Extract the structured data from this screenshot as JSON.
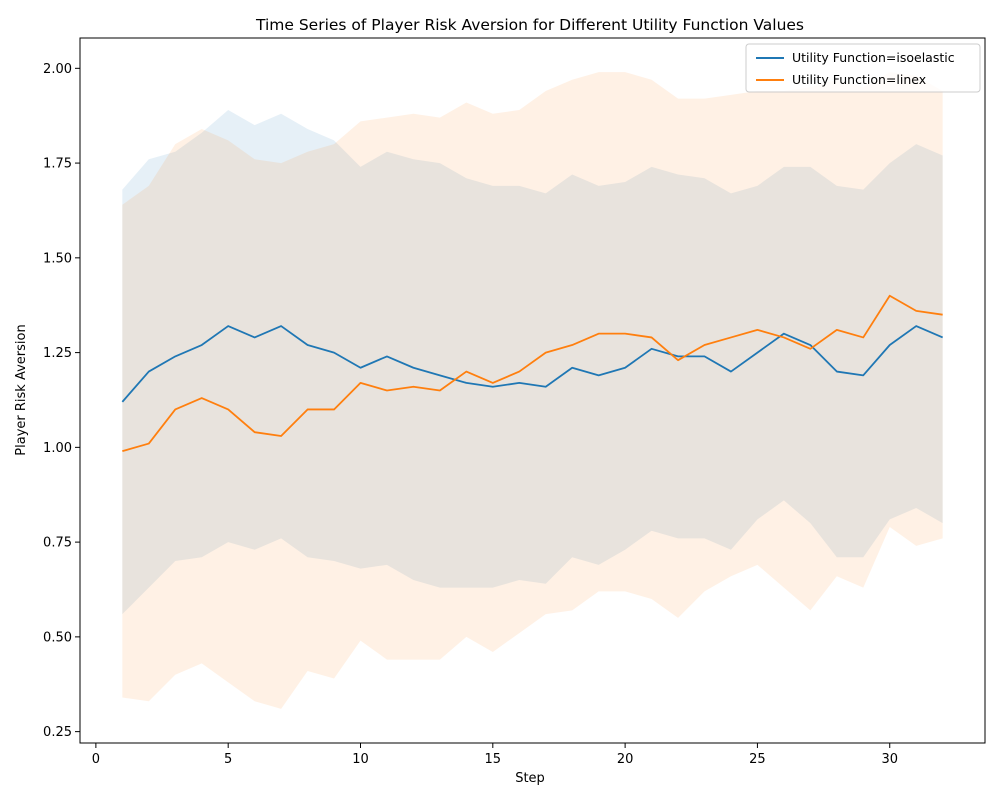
{
  "chart_data": {
    "type": "line",
    "title": "Time Series of Player Risk Aversion for Different Utility Function Values",
    "xlabel": "Step",
    "ylabel": "Player Risk Aversion",
    "xlim": [
      -0.6,
      33.6
    ],
    "ylim": [
      0.22,
      2.08
    ],
    "x_ticks": [
      0,
      5,
      10,
      15,
      20,
      25,
      30
    ],
    "y_ticks": [
      0.25,
      0.5,
      0.75,
      1.0,
      1.25,
      1.5,
      1.75,
      2.0
    ],
    "y_tick_labels": [
      "0.25",
      "0.50",
      "0.75",
      "1.00",
      "1.25",
      "1.50",
      "1.75",
      "2.00"
    ],
    "grid": false,
    "legend_position": "top-right",
    "x": [
      1,
      2,
      3,
      4,
      5,
      6,
      7,
      8,
      9,
      10,
      11,
      12,
      13,
      14,
      15,
      16,
      17,
      18,
      19,
      20,
      21,
      22,
      23,
      24,
      25,
      26,
      27,
      28,
      29,
      30,
      31,
      32
    ],
    "series": [
      {
        "name": "Utility Function=isoelastic",
        "color": "#1f77b4",
        "values": [
          1.12,
          1.2,
          1.24,
          1.27,
          1.32,
          1.29,
          1.32,
          1.27,
          1.25,
          1.21,
          1.24,
          1.21,
          1.19,
          1.17,
          1.16,
          1.17,
          1.16,
          1.21,
          1.19,
          1.21,
          1.26,
          1.24,
          1.24,
          1.2,
          1.25,
          1.3,
          1.27,
          1.2,
          1.19,
          1.27,
          1.32,
          1.29
        ],
        "upper": [
          1.68,
          1.76,
          1.78,
          1.83,
          1.89,
          1.85,
          1.88,
          1.84,
          1.81,
          1.74,
          1.78,
          1.76,
          1.75,
          1.71,
          1.69,
          1.69,
          1.67,
          1.72,
          1.69,
          1.7,
          1.74,
          1.72,
          1.71,
          1.67,
          1.69,
          1.74,
          1.74,
          1.69,
          1.68,
          1.75,
          1.8,
          1.77
        ],
        "lower": [
          0.56,
          0.63,
          0.7,
          0.71,
          0.75,
          0.73,
          0.76,
          0.71,
          0.7,
          0.68,
          0.69,
          0.65,
          0.63,
          0.63,
          0.63,
          0.65,
          0.64,
          0.71,
          0.69,
          0.73,
          0.78,
          0.76,
          0.76,
          0.73,
          0.81,
          0.86,
          0.8,
          0.71,
          0.71,
          0.81,
          0.84,
          0.8
        ]
      },
      {
        "name": "Utility Function=linex",
        "color": "#ff7f0e",
        "values": [
          0.99,
          1.01,
          1.1,
          1.13,
          1.1,
          1.04,
          1.03,
          1.1,
          1.1,
          1.17,
          1.15,
          1.16,
          1.15,
          1.2,
          1.17,
          1.2,
          1.25,
          1.27,
          1.3,
          1.3,
          1.29,
          1.23,
          1.27,
          1.29,
          1.31,
          1.29,
          1.26,
          1.31,
          1.29,
          1.4,
          1.36,
          1.35
        ],
        "upper": [
          1.64,
          1.69,
          1.8,
          1.84,
          1.81,
          1.76,
          1.75,
          1.78,
          1.8,
          1.86,
          1.87,
          1.88,
          1.87,
          1.91,
          1.88,
          1.89,
          1.94,
          1.97,
          1.99,
          1.99,
          1.97,
          1.92,
          1.92,
          1.93,
          1.94,
          1.94,
          1.95,
          1.97,
          1.95,
          1.99,
          1.98,
          1.94
        ],
        "lower": [
          0.34,
          0.33,
          0.4,
          0.43,
          0.38,
          0.33,
          0.31,
          0.41,
          0.39,
          0.49,
          0.44,
          0.44,
          0.44,
          0.5,
          0.46,
          0.51,
          0.56,
          0.57,
          0.62,
          0.62,
          0.6,
          0.55,
          0.62,
          0.66,
          0.69,
          0.63,
          0.57,
          0.66,
          0.63,
          0.79,
          0.74,
          0.76
        ]
      }
    ]
  }
}
